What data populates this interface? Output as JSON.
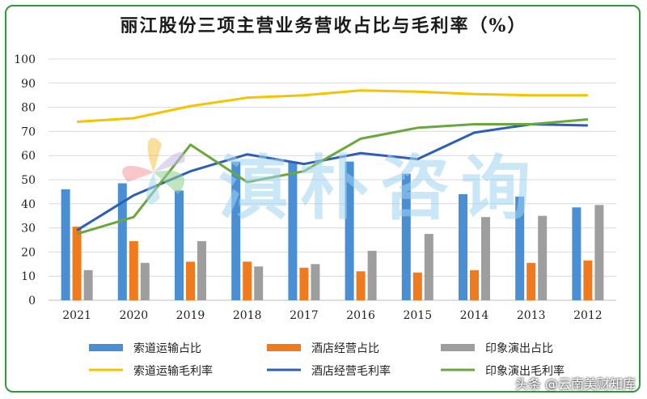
{
  "chart_data": {
    "type": "bar",
    "title": "丽江股份三项主营业务营收占比与毛利率（%）",
    "categories": [
      "2021",
      "2020",
      "2019",
      "2018",
      "2017",
      "2016",
      "2015",
      "2014",
      "2013",
      "2012"
    ],
    "ylim": [
      0,
      100
    ],
    "yticks": [
      0,
      10,
      20,
      30,
      40,
      50,
      60,
      70,
      80,
      90,
      100
    ],
    "grid": true,
    "legend_position": "bottom",
    "bar_series": [
      {
        "name": "索道运输占比",
        "color": "#4a8fd4",
        "values": [
          46,
          48.5,
          45.5,
          57.5,
          57.5,
          57.5,
          52.5,
          44,
          43,
          38.5
        ]
      },
      {
        "name": "酒店经营占比",
        "color": "#f07a1e",
        "values": [
          30.5,
          24.5,
          16,
          16,
          13.5,
          12,
          11.5,
          12.5,
          15.5,
          16.5
        ]
      },
      {
        "name": "印象演出占比",
        "color": "#9e9e9e",
        "values": [
          12.5,
          15.5,
          24.5,
          14,
          15,
          20.5,
          27.5,
          34.5,
          35,
          39.5
        ]
      }
    ],
    "line_series": [
      {
        "name": "索道运输毛利率",
        "color": "#f5c400",
        "values": [
          74,
          75.5,
          80.5,
          84,
          85,
          87,
          86.5,
          85.5,
          85,
          85
        ]
      },
      {
        "name": "酒店经营毛利率",
        "color": "#2e5fb8",
        "values": [
          29,
          43.5,
          53.5,
          60.5,
          56.5,
          61,
          58.5,
          69.5,
          73,
          72.5
        ]
      },
      {
        "name": "印象演出毛利率",
        "color": "#6aa83c",
        "values": [
          27.5,
          34.5,
          64.5,
          49,
          53.5,
          67,
          71.5,
          73,
          73,
          75
        ]
      }
    ]
  },
  "watermark": {
    "text": "滇朴咨询"
  },
  "credit": {
    "text": "头条 @云南美财知库"
  }
}
